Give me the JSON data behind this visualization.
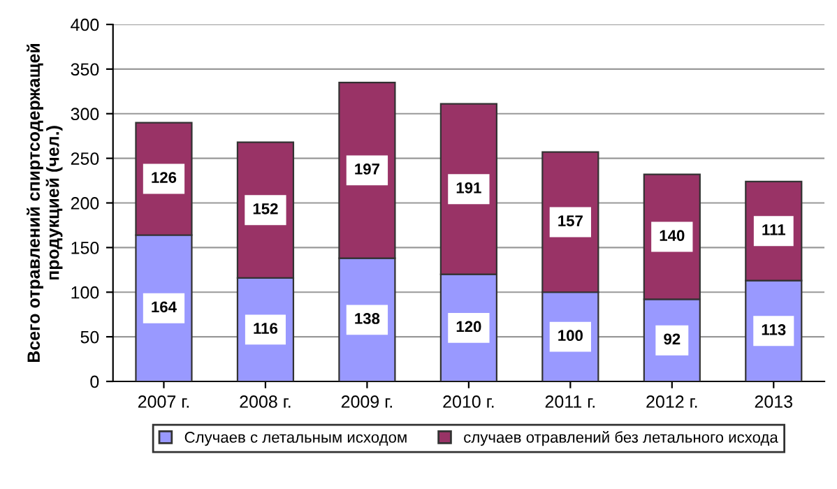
{
  "chart_data": {
    "type": "bar",
    "stacked": true,
    "ylabel": "Всего отравлений спиртсодержащей продукцией (чел.)",
    "categories": [
      "2007 г.",
      "2008 г.",
      "2009 г.",
      "2010 г.",
      "2011 г.",
      "2012 г.",
      "2013"
    ],
    "series": [
      {
        "name": "Случаев с летальным исходом",
        "color": "#9999ff",
        "values": [
          164,
          116,
          138,
          120,
          100,
          92,
          113
        ]
      },
      {
        "name": "случаев отравлений без летального исхода",
        "color": "#993366",
        "values": [
          126,
          152,
          197,
          191,
          157,
          140,
          111
        ]
      }
    ],
    "ylim": [
      0,
      400
    ],
    "yticks": [
      0,
      50,
      100,
      150,
      200,
      250,
      300,
      350,
      400
    ],
    "grid": "y",
    "legend": "bottom",
    "data_labels": true
  }
}
